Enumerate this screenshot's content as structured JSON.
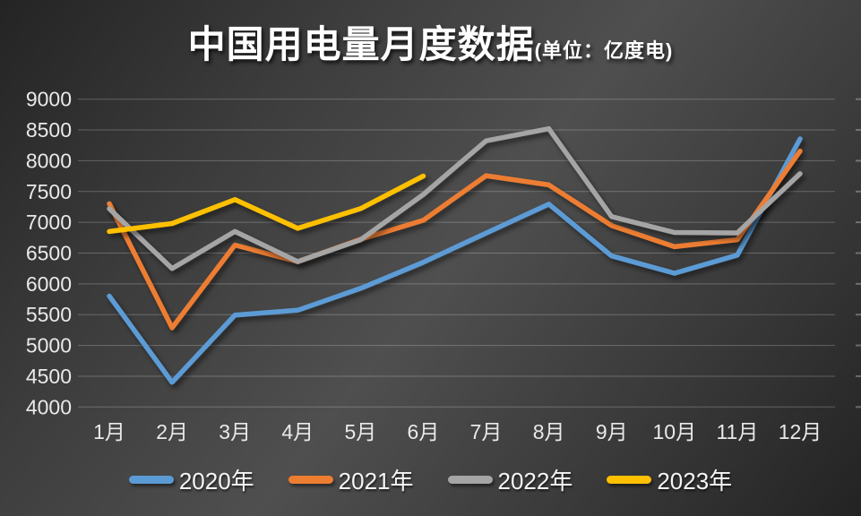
{
  "title": {
    "main": "中国用电量月度数据",
    "unit": "(单位：亿度电)"
  },
  "chart_data": {
    "type": "line",
    "title": "中国用电量月度数据",
    "unit_label": "(单位：亿度电)",
    "x": [
      "1月",
      "2月",
      "3月",
      "4月",
      "5月",
      "6月",
      "7月",
      "8月",
      "9月",
      "10月",
      "11月",
      "12月"
    ],
    "series": [
      {
        "name": "2020年",
        "color": "#5B9BD5",
        "values": [
          5802,
          4401,
          5493,
          5572,
          5926,
          6350,
          6824,
          7294,
          6454,
          6172,
          6467,
          8355
        ]
      },
      {
        "name": "2021年",
        "color": "#ED7D31",
        "values": [
          7302,
          5286,
          6631,
          6361,
          6724,
          7033,
          7758,
          7607,
          6947,
          6603,
          6718,
          8158
        ]
      },
      {
        "name": "2022年",
        "color": "#A5A5A5",
        "values": [
          7220,
          6250,
          6850,
          6362,
          6716,
          7451,
          8324,
          8520,
          7092,
          6834,
          6828,
          7790
        ]
      },
      {
        "name": "2023年",
        "color": "#FFC000",
        "values": [
          6850,
          6980,
          7369,
          6901,
          7222,
          7751,
          null,
          null,
          null,
          null,
          null,
          null
        ]
      }
    ],
    "y_ticks": [
      9000,
      8500,
      8000,
      7500,
      7000,
      6500,
      6000,
      5500,
      5000,
      4500,
      4000
    ],
    "ylim": [
      4000,
      9000
    ],
    "grid": true,
    "legend_position": "bottom",
    "background": "dark-gray-gradient",
    "grid_color": "rgba(255,255,255,0.24)",
    "axis_text_color": "#E9E9E9"
  }
}
